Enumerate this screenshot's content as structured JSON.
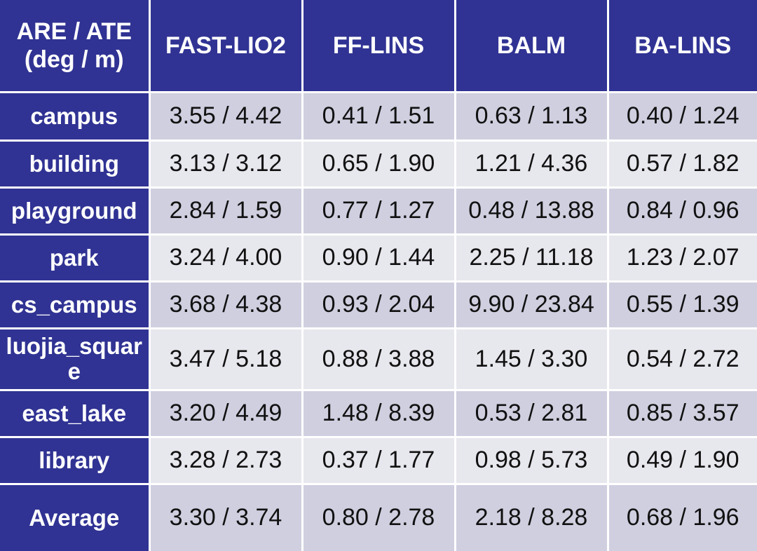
{
  "table": {
    "corner": [
      "ARE / ATE",
      "(deg / m)"
    ],
    "columns": [
      "FAST-LIO2",
      "FF-LINS",
      "BALM",
      "BA-LINS"
    ],
    "rows": [
      {
        "label": "campus",
        "cells": [
          "3.55 / 4.42",
          "0.41 / 1.51",
          "0.63 / 1.13",
          "0.40 / 1.24"
        ]
      },
      {
        "label": "building",
        "cells": [
          "3.13 / 3.12",
          "0.65 / 1.90",
          "1.21 / 4.36",
          "0.57 / 1.82"
        ]
      },
      {
        "label": "playground",
        "cells": [
          "2.84 / 1.59",
          "0.77 / 1.27",
          "0.48 / 13.88",
          "0.84 / 0.96"
        ]
      },
      {
        "label": "park",
        "cells": [
          "3.24 / 4.00",
          "0.90 / 1.44",
          "2.25 / 11.18",
          "1.23 / 2.07"
        ]
      },
      {
        "label": "cs_campus",
        "cells": [
          "3.68 / 4.38",
          "0.93 / 2.04",
          "9.90 / 23.84",
          "0.55 / 1.39"
        ]
      },
      {
        "label": "luojia_square",
        "cells": [
          "3.47 / 5.18",
          "0.88 / 3.88",
          "1.45 / 3.30",
          "0.54 / 2.72"
        ]
      },
      {
        "label": "east_lake",
        "cells": [
          "3.20 / 4.49",
          "1.48 / 8.39",
          "0.53 / 2.81",
          "0.85 / 3.57"
        ]
      },
      {
        "label": "library",
        "cells": [
          "3.28 / 2.73",
          "0.37 / 1.77",
          "0.98 / 5.73",
          "0.49 / 1.90"
        ]
      },
      {
        "label": "Average",
        "cells": [
          "3.30 / 3.74",
          "0.80 / 2.78",
          "2.18 / 8.28",
          "0.68 / 1.96"
        ]
      }
    ]
  }
}
